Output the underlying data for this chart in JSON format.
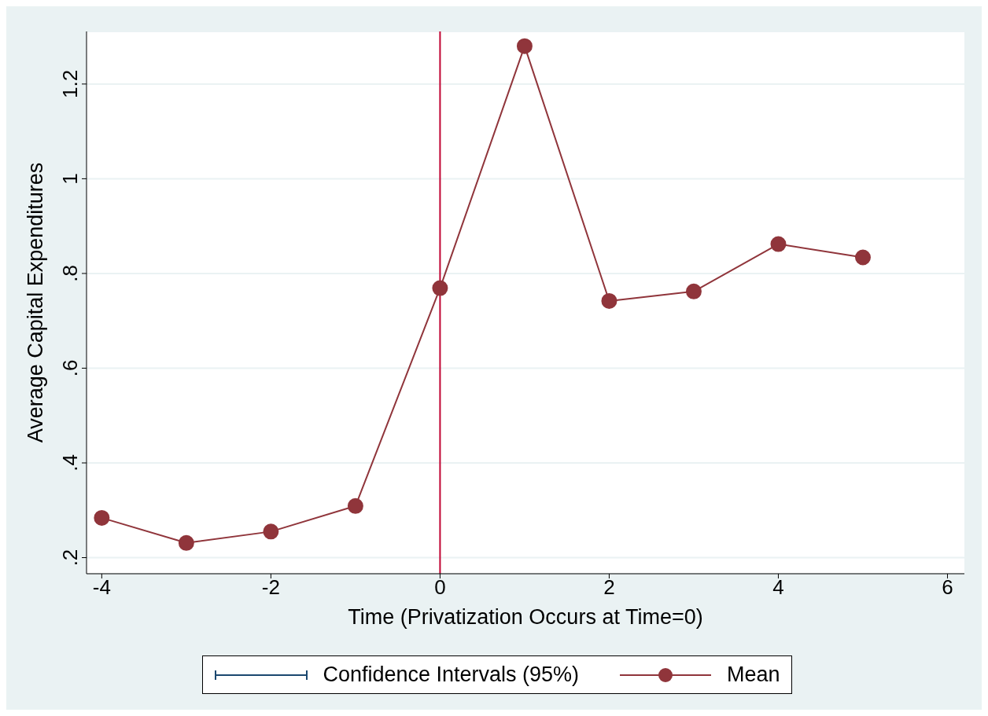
{
  "chart_data": {
    "type": "line",
    "xlabel": "Time (Privatization Occurs at Time=0)",
    "ylabel": "Average Capital Expenditures",
    "x": [
      -4,
      -3,
      -2,
      -1,
      0,
      1,
      2,
      3,
      4,
      5
    ],
    "series": [
      {
        "name": "Confidence Intervals (95%)",
        "color": "#1a476f",
        "marker": "none",
        "values": [
          null,
          null,
          null,
          null,
          null,
          null,
          null,
          null,
          null,
          null
        ]
      },
      {
        "name": "Mean",
        "color": "#90353b",
        "marker": "circle",
        "values": [
          0.284,
          0.231,
          0.255,
          0.309,
          0.769,
          1.28,
          0.742,
          0.762,
          0.862,
          0.834
        ]
      }
    ],
    "xlim": [
      -4.18,
      6.2
    ],
    "xticks": [
      -4,
      -2,
      0,
      2,
      4,
      6
    ],
    "ylim": [
      0.166,
      1.311
    ],
    "yticks": [
      {
        "value": 0.2,
        "label": ".2"
      },
      {
        "value": 0.4,
        "label": ".4"
      },
      {
        "value": 0.6,
        "label": ".6"
      },
      {
        "value": 0.8,
        "label": ".8"
      },
      {
        "value": 1,
        "label": "1"
      },
      {
        "value": 1.2,
        "label": "1.2"
      }
    ],
    "ref_lines": [
      {
        "axis": "x",
        "value": 0,
        "color": "#c10534"
      }
    ],
    "grid": "y",
    "legend": "bottom",
    "line_style": "solid"
  }
}
